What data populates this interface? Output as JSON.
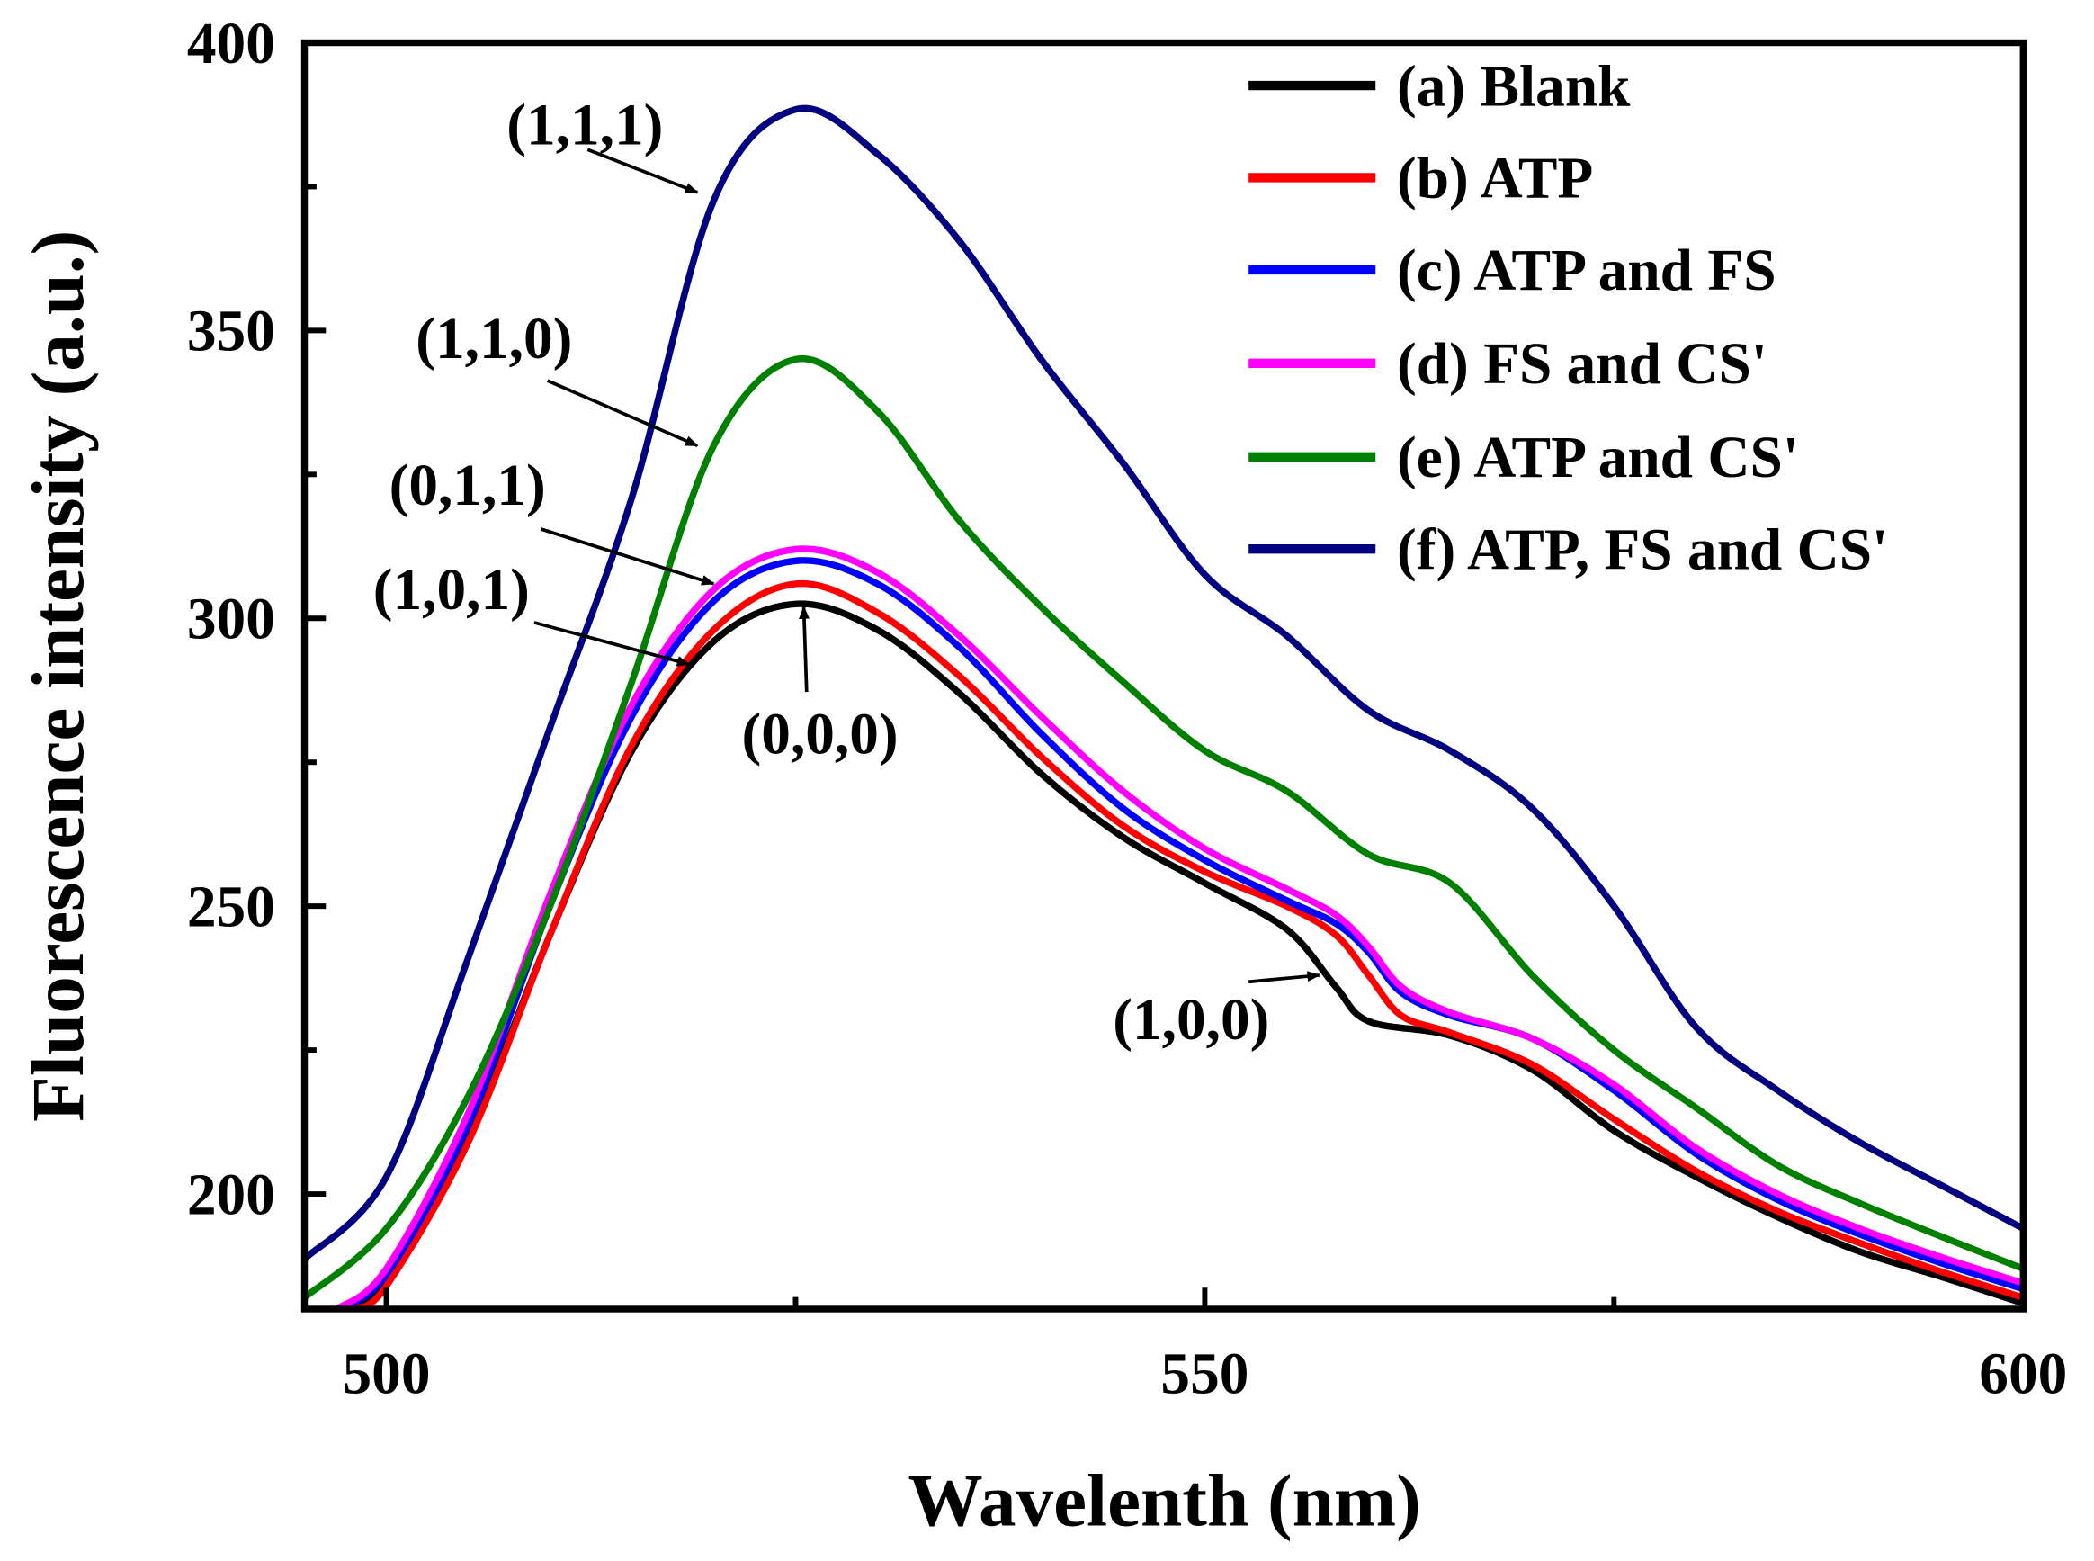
{
  "chart_data": {
    "type": "line",
    "title": "",
    "xlabel": "Wavelenth (nm)",
    "ylabel": "Fluorescence intensity (a.u.)",
    "xlim": [
      495,
      600
    ],
    "ylim": [
      180,
      400
    ],
    "xticks": [
      500,
      550,
      600
    ],
    "xticks_minor": [
      525,
      575
    ],
    "yticks": [
      200,
      250,
      300,
      350,
      400
    ],
    "yticks_minor": [
      225,
      275,
      325,
      375
    ],
    "grid": false,
    "legend_position": "top-right",
    "series": [
      {
        "name": "(a) Blank",
        "color": "#000000",
        "x": [
          497.5,
          500,
          505,
          510,
          515,
          520,
          525,
          530,
          535,
          540,
          545,
          550,
          555,
          558,
          560,
          565,
          570,
          575,
          580,
          585,
          590,
          595,
          600
        ],
        "y": [
          180,
          184.5,
          210,
          245,
          277,
          296,
          302.5,
          298,
          287,
          273,
          262,
          254,
          246,
          236,
          230,
          227.5,
          221.6,
          211,
          203,
          196,
          190,
          185.6,
          181
        ]
      },
      {
        "name": "(b) ATP",
        "color": "#ff0000",
        "x": [
          498,
          500,
          505,
          510,
          515,
          520,
          525,
          530,
          535,
          540,
          545,
          550,
          555,
          558,
          560,
          562,
          565,
          570,
          575,
          580,
          585,
          590,
          595,
          600
        ],
        "y": [
          180,
          184,
          209,
          245,
          278,
          298,
          306,
          301,
          290,
          276,
          264,
          256,
          250,
          245,
          238,
          231,
          228,
          222.5,
          213,
          204,
          197,
          191.5,
          186.5,
          182
        ]
      },
      {
        "name": "(c) ATP and FS",
        "color": "#0000ff",
        "x": [
          497,
          500,
          505,
          510,
          515,
          520,
          525,
          530,
          535,
          540,
          545,
          550,
          555,
          558,
          560,
          562,
          565,
          570,
          575,
          580,
          585,
          590,
          595,
          600
        ],
        "y": [
          180,
          186,
          212,
          250,
          283,
          303,
          310,
          306,
          295,
          280,
          267,
          258,
          251,
          247,
          242,
          235,
          231,
          227,
          218,
          207,
          199,
          193,
          188,
          183.5
        ]
      },
      {
        "name": "(d) FS and CS'",
        "color": "#ff00ff",
        "x": [
          497,
          500,
          505,
          510,
          515,
          520,
          525,
          530,
          535,
          540,
          545,
          550,
          555,
          558,
          560,
          562,
          565,
          570,
          575,
          580,
          585,
          590,
          595,
          600
        ],
        "y": [
          180,
          187,
          214,
          252,
          285,
          305,
          312,
          308,
          297,
          283,
          270,
          260,
          253,
          248.5,
          243,
          236,
          231.5,
          227,
          219,
          208,
          200,
          194,
          189,
          184.5
        ]
      },
      {
        "name": "(e) ATP and CS'",
        "color": "#008000",
        "x": [
          495,
          500,
          505,
          510,
          515,
          520,
          525,
          530,
          535,
          540,
          545,
          550,
          555,
          560,
          565,
          570,
          575,
          580,
          585,
          590,
          595,
          600
        ],
        "y": [
          182,
          194,
          217,
          250,
          289,
          330,
          345,
          336,
          317,
          302,
          289,
          277,
          270,
          259,
          254,
          238,
          225,
          215,
          205,
          198.4,
          192.6,
          187
        ]
      },
      {
        "name": "(f) ATP, FS and CS'",
        "color": "#000080",
        "x": [
          495,
          500,
          505,
          510,
          515,
          520,
          525,
          530,
          535,
          540,
          545,
          550,
          555,
          560,
          565,
          570,
          575,
          580,
          585,
          590,
          595,
          600
        ],
        "y": [
          188.7,
          203,
          241,
          281,
          321,
          372.6,
          388.4,
          380.7,
          365.6,
          345,
          327,
          307.6,
          297,
          284,
          277,
          267,
          250,
          229,
          218,
          209,
          201.5,
          194
        ]
      }
    ],
    "annotations": [
      {
        "text": "(1,1,1)",
        "x": 519,
        "y": 374
      },
      {
        "text": "(1,1,0)",
        "x": 519,
        "y": 330
      },
      {
        "text": "(0,1,1)",
        "x": 520,
        "y": 306
      },
      {
        "text": "(1,0,1)",
        "x": 518.5,
        "y": 292
      },
      {
        "text": "(0,0,0)",
        "x": 525.5,
        "y": 302
      },
      {
        "text": "(1,0,0)",
        "x": 557,
        "y": 238
      }
    ]
  }
}
